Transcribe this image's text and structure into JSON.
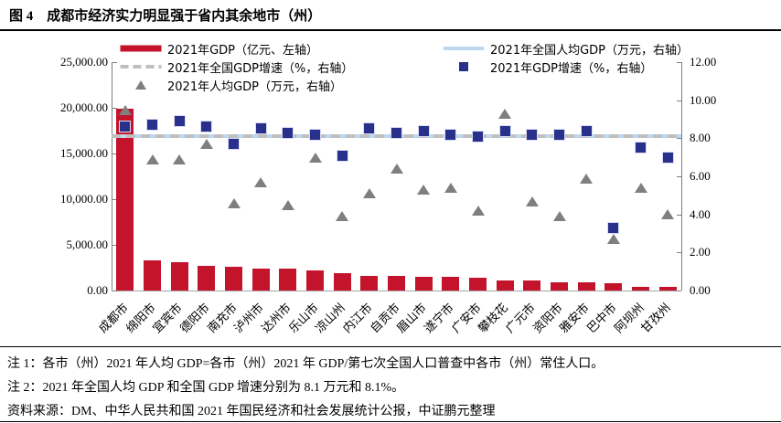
{
  "figure": {
    "full_title": "图 4　成都市经济实力明显强于省内其余地市（州）"
  },
  "legend": {
    "left": [
      {
        "marker": "red-line-marker",
        "label": "2021年GDP（亿元、左轴）"
      },
      {
        "marker": "gray-dashed-line-marker",
        "label": "2021年全国GDP增速（%，右轴）"
      },
      {
        "marker": "gray-triangle-marker",
        "label": "2021年人均GDP（万元，右轴）"
      }
    ],
    "right": [
      {
        "marker": "lightblue-line-marker",
        "label": "2021年全国人均GDP（万元，右轴）"
      },
      {
        "marker": "blue-square-marker",
        "label": "2021年GDP增速（%，右轴）"
      }
    ]
  },
  "chart_data": {
    "type": "bar",
    "subtype": "composite-bar-scatter-line",
    "categories": [
      "成都市",
      "绵阳市",
      "宜宾市",
      "德阳市",
      "南充市",
      "泸州市",
      "达州市",
      "乐山市",
      "凉山州",
      "内江市",
      "自贡市",
      "眉山市",
      "遂宁市",
      "广安市",
      "攀枝花",
      "广元市",
      "资阳市",
      "雅安市",
      "巴中市",
      "阿坝州",
      "甘孜州"
    ],
    "series": [
      {
        "name": "2021年GDP（亿元、左轴）",
        "type": "bar",
        "axis": "left",
        "values": [
          19917,
          3350,
          3148,
          2657,
          2602,
          2406,
          2352,
          2205,
          1901,
          1606,
          1601,
          1548,
          1466,
          1418,
          1134,
          1100,
          947,
          885,
          760,
          450,
          440
        ]
      },
      {
        "name": "2021年GDP增速（%，右轴）",
        "type": "square",
        "axis": "right",
        "values": [
          8.6,
          8.7,
          8.9,
          8.6,
          7.7,
          8.5,
          8.3,
          8.2,
          7.1,
          8.5,
          8.3,
          8.4,
          8.2,
          8.1,
          8.4,
          8.2,
          8.2,
          8.4,
          3.3,
          7.5,
          7.0
        ]
      },
      {
        "name": "2021年人均GDP（万元，右轴）",
        "type": "triangle",
        "axis": "right",
        "values": [
          9.5,
          6.9,
          6.9,
          7.7,
          4.6,
          5.7,
          4.5,
          7.0,
          3.9,
          5.1,
          6.4,
          5.3,
          5.4,
          4.2,
          9.3,
          4.7,
          3.9,
          5.9,
          2.7,
          5.4,
          4.0
        ]
      },
      {
        "name": "2021年全国人均GDP（万元，右轴）",
        "type": "hline-solid",
        "axis": "right",
        "value": 8.1
      },
      {
        "name": "2021年全国GDP增速（%，右轴）",
        "type": "hline-dashed",
        "axis": "right",
        "value": 8.1
      }
    ],
    "left_axis": {
      "ticks": [
        "25,000.00",
        "20,000.00",
        "15,000.00",
        "10,000.00",
        "5,000.00",
        "0.00"
      ],
      "min": 0,
      "max": 25000
    },
    "right_axis": {
      "ticks": [
        "12.00",
        "10.00",
        "8.00",
        "6.00",
        "4.00",
        "2.00",
        "0.00"
      ],
      "min": 0,
      "max": 12
    },
    "grid": false,
    "legend_position": "top"
  },
  "notes": {
    "note1": "注 1：各市（州）2021 年人均 GDP=各市（州）2021 年 GDP/第七次全国人口普查中各市（州）常住人口。",
    "note2": "注 2：2021 年全国人均 GDP 和全国 GDP 增速分别为 8.1 万元和 8.1%。",
    "source": "资料来源：DM、中华人民共和国 2021 年国民经济和社会发展统计公报，中证鹏元整理"
  },
  "colors": {
    "bar_red": "#C3142C",
    "square_blue": "#29308C",
    "square_border": "#D8DCF2",
    "triangle_gray": "#7F7F7F",
    "national_line_blue": "#BDD7EE",
    "national_dash_gray": "#BFBFBF",
    "axis_line": "#7F7F7F",
    "x_axis_line": "#A6A6A6",
    "text_black": "#000000"
  }
}
